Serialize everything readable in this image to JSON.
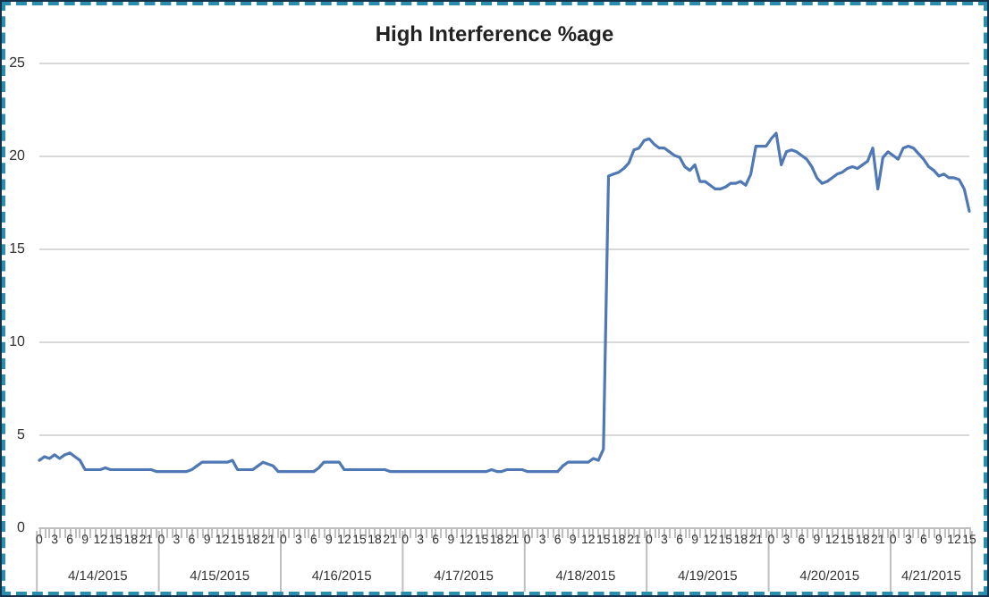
{
  "chart_data": {
    "type": "line",
    "title": "High Interference %age",
    "categories": [
      "0",
      null,
      null,
      "3",
      null,
      null,
      "6",
      null,
      null,
      "9",
      null,
      null,
      "12",
      null,
      null,
      "15",
      null,
      null,
      "18",
      null,
      null,
      "21",
      null,
      null,
      "0",
      null,
      null,
      "3",
      null,
      null,
      "6",
      null,
      null,
      "9",
      null,
      null,
      "12",
      null,
      null,
      "15",
      null,
      null,
      "18",
      null,
      null,
      "21",
      null,
      null,
      "0",
      null,
      null,
      "3",
      null,
      null,
      "6",
      null,
      null,
      "9",
      null,
      null,
      "12",
      null,
      null,
      "15",
      null,
      null,
      "18",
      null,
      null,
      "21",
      null,
      null,
      "0",
      null,
      null,
      "3",
      null,
      null,
      "6",
      null,
      null,
      "9",
      null,
      null,
      "12",
      null,
      null,
      "15",
      null,
      null,
      "18",
      null,
      null,
      "21",
      null,
      null,
      "0",
      null,
      null,
      "3",
      null,
      null,
      "6",
      null,
      null,
      "9",
      null,
      null,
      "12",
      null,
      null,
      "15",
      null,
      null,
      "18",
      null,
      null,
      "21",
      null,
      null,
      "0",
      null,
      null,
      "3",
      null,
      null,
      "6",
      null,
      null,
      "9",
      null,
      null,
      "12",
      null,
      null,
      "15",
      null,
      null,
      "18",
      null,
      null,
      "21",
      null,
      null,
      "0",
      null,
      null,
      "3",
      null,
      null,
      "6",
      null,
      null,
      "9",
      null,
      null,
      "12",
      null,
      null,
      "15",
      null,
      null,
      "18",
      null,
      null,
      "21",
      null,
      null,
      "0",
      null,
      null,
      "3",
      null,
      null,
      "6",
      null,
      null,
      "9",
      null,
      null,
      "12",
      null,
      null,
      "15"
    ],
    "series": [
      {
        "color": "#4f78b5",
        "values": [
          3.6,
          3.8,
          3.7,
          3.9,
          3.7,
          3.9,
          4.0,
          3.8,
          3.6,
          3.1,
          3.1,
          3.1,
          3.1,
          3.2,
          3.1,
          3.1,
          3.1,
          3.1,
          3.1,
          3.1,
          3.1,
          3.1,
          3.1,
          3.0,
          3.0,
          3.0,
          3.0,
          3.0,
          3.0,
          3.0,
          3.1,
          3.3,
          3.5,
          3.5,
          3.5,
          3.5,
          3.5,
          3.5,
          3.6,
          3.1,
          3.1,
          3.1,
          3.1,
          3.3,
          3.5,
          3.4,
          3.3,
          3.0,
          3.0,
          3.0,
          3.0,
          3.0,
          3.0,
          3.0,
          3.0,
          3.2,
          3.5,
          3.5,
          3.5,
          3.5,
          3.1,
          3.1,
          3.1,
          3.1,
          3.1,
          3.1,
          3.1,
          3.1,
          3.1,
          3.0,
          3.0,
          3.0,
          3.0,
          3.0,
          3.0,
          3.0,
          3.0,
          3.0,
          3.0,
          3.0,
          3.0,
          3.0,
          3.0,
          3.0,
          3.0,
          3.0,
          3.0,
          3.0,
          3.0,
          3.1,
          3.0,
          3.0,
          3.1,
          3.1,
          3.1,
          3.1,
          3.0,
          3.0,
          3.0,
          3.0,
          3.0,
          3.0,
          3.0,
          3.3,
          3.5,
          3.5,
          3.5,
          3.5,
          3.5,
          3.7,
          3.6,
          4.2,
          18.9,
          19.0,
          19.1,
          19.3,
          19.6,
          20.3,
          20.4,
          20.8,
          20.9,
          20.6,
          20.4,
          20.4,
          20.2,
          20.0,
          19.9,
          19.4,
          19.2,
          19.5,
          18.6,
          18.6,
          18.4,
          18.2,
          18.2,
          18.3,
          18.5,
          18.5,
          18.6,
          18.4,
          19.0,
          20.5,
          20.5,
          20.5,
          20.9,
          21.2,
          19.5,
          20.2,
          20.3,
          20.2,
          20.0,
          19.8,
          19.4,
          18.8,
          18.5,
          18.6,
          18.8,
          19.0,
          19.1,
          19.3,
          19.4,
          19.3,
          19.5,
          19.7,
          20.4,
          18.2,
          19.9,
          20.2,
          20.0,
          19.8,
          20.4,
          20.5,
          20.4,
          20.1,
          19.8,
          19.4,
          19.2,
          18.9,
          19.0,
          18.8,
          18.8,
          18.7,
          18.2,
          17.0
        ]
      }
    ],
    "annotations": [
      "4/14/2015",
      "4/15/2015",
      "4/16/2015",
      "4/17/2015",
      "4/18/2015",
      "4/19/2015",
      "4/20/2015",
      "4/21/2015"
    ],
    "ylim": [
      0,
      25
    ],
    "yticks": [
      0,
      5,
      10,
      15,
      20,
      25
    ],
    "grid": "y",
    "marker": "none",
    "line_style": "solid"
  }
}
